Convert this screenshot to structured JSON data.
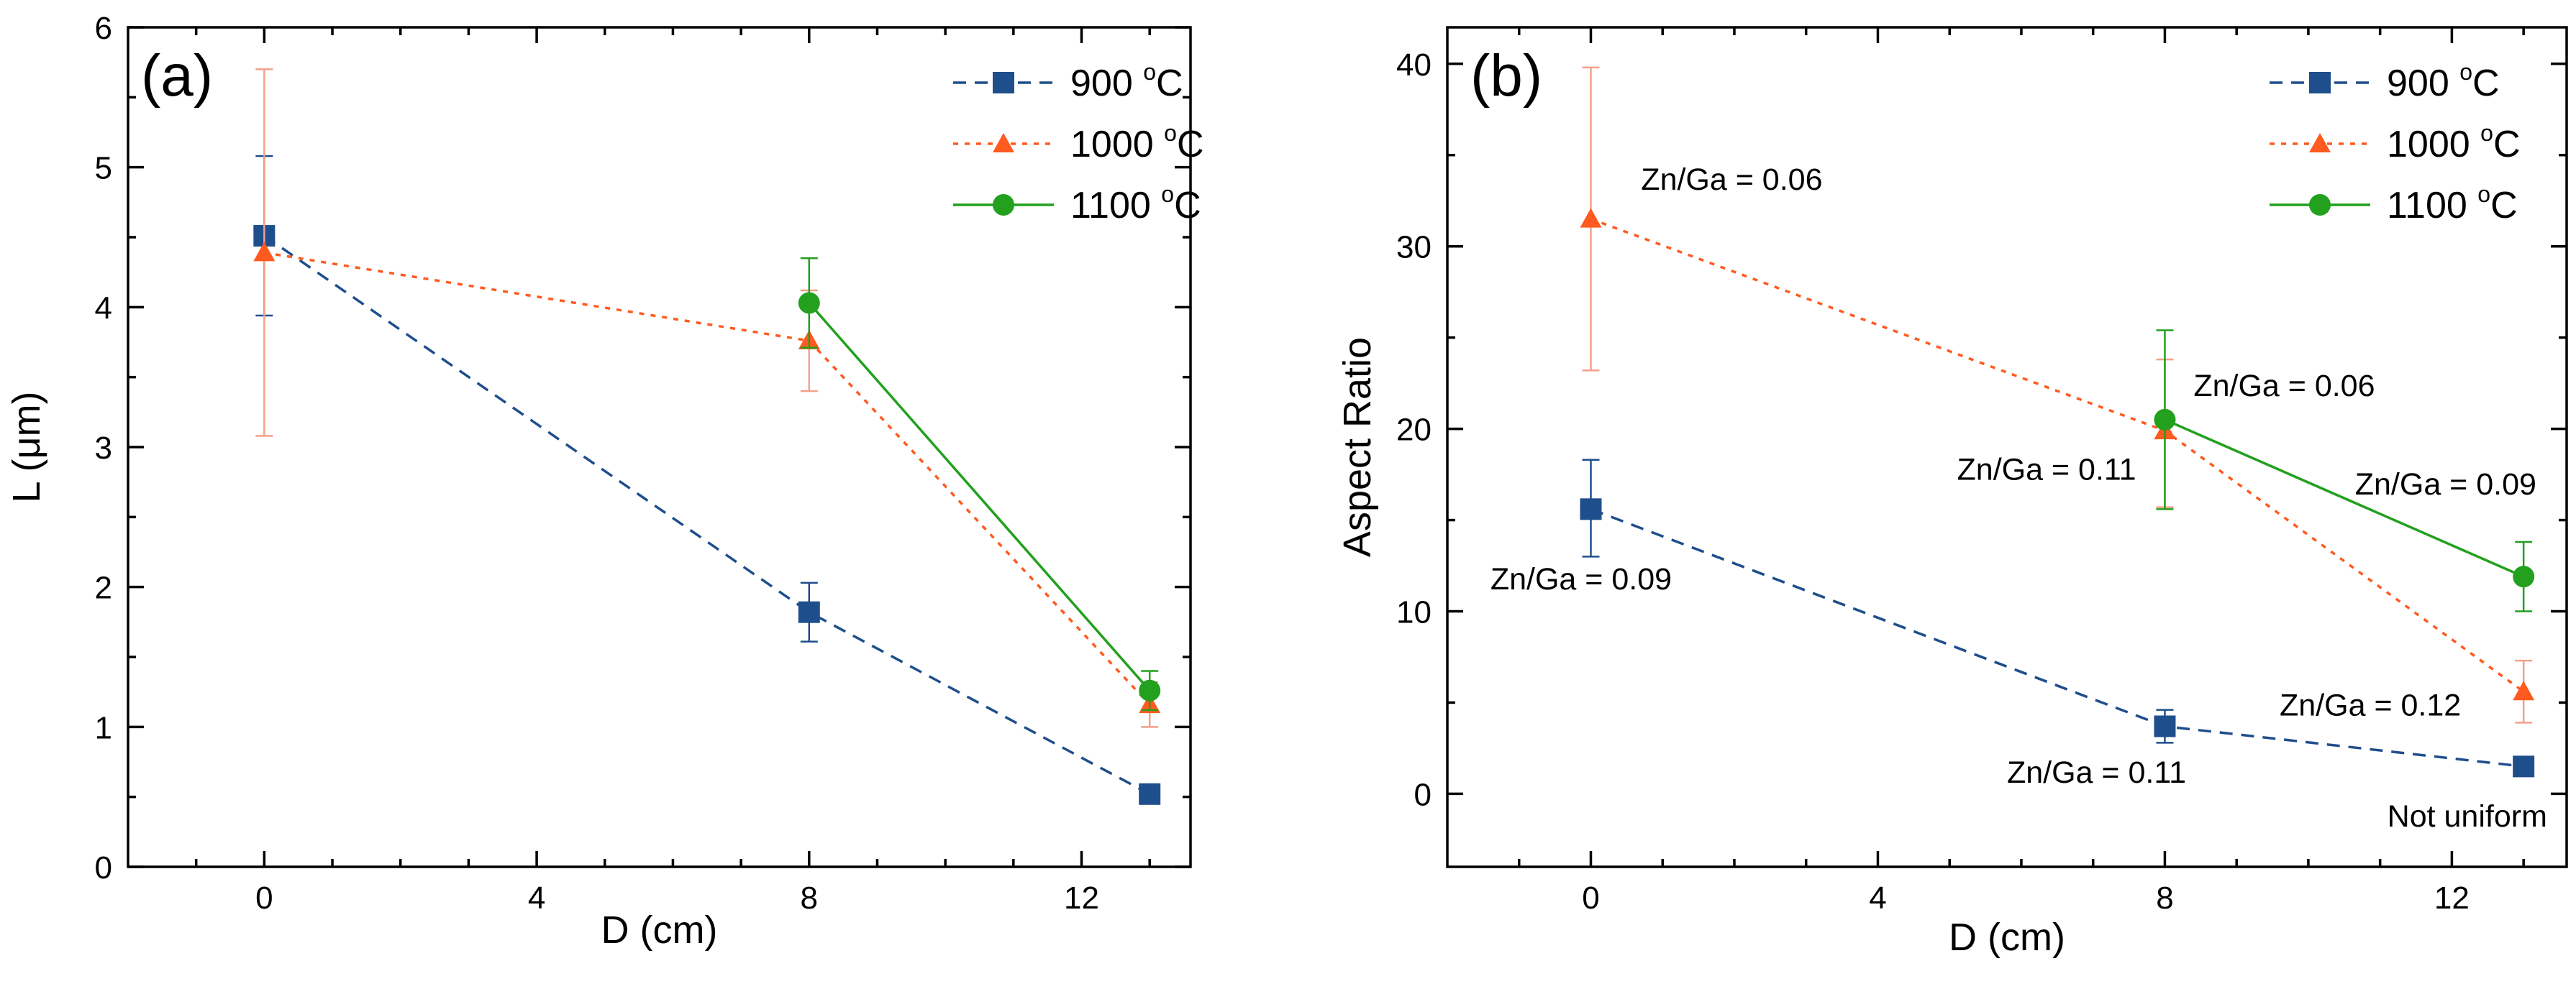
{
  "colors": {
    "900": "#1f4e8c",
    "1000": "#ff5a1f",
    "1000_err": "#f4a08a",
    "1100": "#22a01e"
  },
  "chart_data": [
    {
      "type": "line",
      "panel_label": "(a)",
      "title": "",
      "xlabel": "D (cm)",
      "ylabel": "L (μm)",
      "xlim": [
        -2,
        13.6
      ],
      "ylim": [
        0,
        6
      ],
      "xticks": [
        0,
        4,
        8,
        12
      ],
      "yticks": [
        0,
        1,
        2,
        3,
        4,
        5,
        6
      ],
      "legend_position": "top-right",
      "series": [
        {
          "key": "900",
          "name_main": "900 ",
          "name_sup": "o",
          "name_unit": "C",
          "x": [
            0,
            8,
            13
          ],
          "y": [
            4.51,
            1.82,
            0.52
          ],
          "err": [
            [
              0.57,
              0.57
            ],
            [
              0.21,
              0.21
            ],
            [
              0,
              0
            ]
          ],
          "marker": "square",
          "dash": "dashed"
        },
        {
          "key": "1000",
          "name_main": "1000 ",
          "name_sup": "o",
          "name_unit": "C",
          "x": [
            0,
            8,
            13
          ],
          "y": [
            4.39,
            3.76,
            1.16
          ],
          "err": [
            [
              1.31,
              1.31
            ],
            [
              0.36,
              0.36
            ],
            [
              0.16,
              0.16
            ]
          ],
          "marker": "triangle",
          "dash": "dotted"
        },
        {
          "key": "1100",
          "name_main": "1100 ",
          "name_sup": "o",
          "name_unit": "C",
          "x": [
            8,
            13
          ],
          "y": [
            4.03,
            1.26
          ],
          "err": [
            [
              0.32,
              0.32
            ],
            [
              0.14,
              0.14
            ]
          ],
          "marker": "circle",
          "dash": "solid"
        }
      ],
      "annotations": []
    },
    {
      "type": "line",
      "panel_label": "(b)",
      "title": "",
      "xlabel": "D (cm)",
      "ylabel": "Aspect Ratio",
      "xlim": [
        -2,
        13.6
      ],
      "ylim": [
        -4,
        42
      ],
      "xticks": [
        0,
        4,
        8,
        12
      ],
      "yticks": [
        0,
        10,
        20,
        30,
        40
      ],
      "legend_position": "top-right",
      "series": [
        {
          "key": "900",
          "name_main": "900 ",
          "name_sup": "o",
          "name_unit": "C",
          "x": [
            0,
            8,
            13
          ],
          "y": [
            15.6,
            3.7,
            1.5
          ],
          "err": [
            [
              2.6,
              2.7
            ],
            [
              0.9,
              0.9
            ],
            [
              0,
              0
            ]
          ],
          "marker": "square",
          "dash": "dashed"
        },
        {
          "key": "1000",
          "name_main": "1000 ",
          "name_sup": "o",
          "name_unit": "C",
          "x": [
            0,
            8,
            13
          ],
          "y": [
            31.5,
            19.9,
            5.6
          ],
          "err": [
            [
              8.3,
              8.3
            ],
            [
              4.2,
              3.9
            ],
            [
              1.7,
              1.7
            ]
          ],
          "marker": "triangle",
          "dash": "dotted"
        },
        {
          "key": "1100",
          "name_main": "1100 ",
          "name_sup": "o",
          "name_unit": "C",
          "x": [
            8,
            13
          ],
          "y": [
            20.5,
            11.9
          ],
          "err": [
            [
              4.9,
              4.9
            ],
            [
              1.9,
              1.9
            ]
          ],
          "marker": "circle",
          "dash": "solid"
        }
      ],
      "annotations": [
        {
          "text": "Zn/Ga = 0.06",
          "x": 0.7,
          "y": 33.1,
          "anchor": "start"
        },
        {
          "text": "Zn/Ga = 0.09",
          "x": -1.4,
          "y": 11.2,
          "anchor": "start"
        },
        {
          "text": "Zn/Ga = 0.06",
          "x": 8.4,
          "y": 21.8,
          "anchor": "start"
        },
        {
          "text": "Zn/Ga = 0.11",
          "x": 7.6,
          "y": 17.2,
          "anchor": "end"
        },
        {
          "text": "Zn/Ga = 0.09",
          "x": 10.65,
          "y": 16.4,
          "anchor": "start"
        },
        {
          "text": "Zn/Ga = 0.12",
          "x": 9.6,
          "y": 4.3,
          "anchor": "start"
        },
        {
          "text": "Zn/Ga = 0.11",
          "x": 5.8,
          "y": 0.6,
          "anchor": "start"
        },
        {
          "text": "Not uniform",
          "x": 11.1,
          "y": -1.8,
          "anchor": "start"
        }
      ]
    }
  ]
}
